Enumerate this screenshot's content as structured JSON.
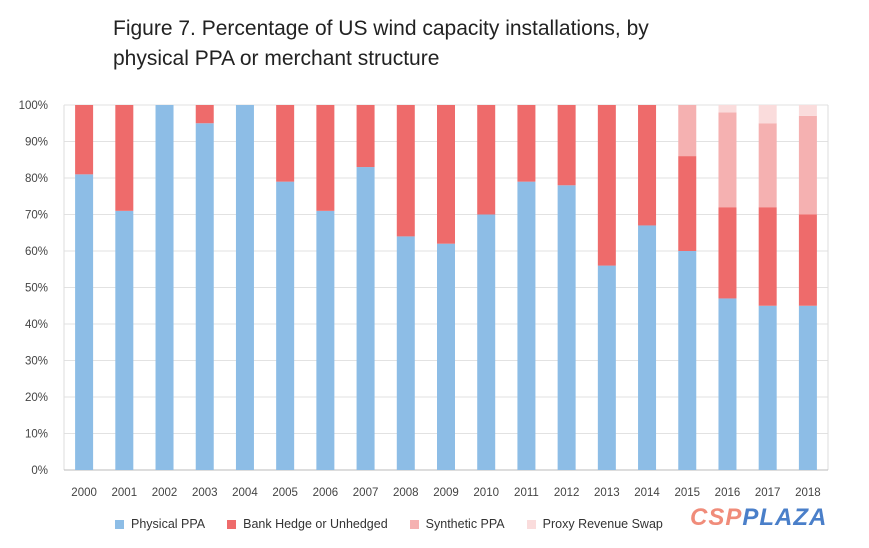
{
  "title_line1": "Figure 7. Percentage of US wind capacity installations, by",
  "title_line2": "physical PPA or merchant structure",
  "chart_data": {
    "type": "bar",
    "stacked": true,
    "title": "Figure 7. Percentage of US wind capacity installations, by physical PPA or merchant structure",
    "xlabel": "",
    "ylabel": "",
    "ylim": [
      0,
      100
    ],
    "yticks": [
      "0%",
      "10%",
      "20%",
      "30%",
      "40%",
      "50%",
      "60%",
      "70%",
      "80%",
      "90%",
      "100%"
    ],
    "grid": true,
    "legend_position": "bottom",
    "categories": [
      "2000",
      "2001",
      "2002",
      "2003",
      "2004",
      "2005",
      "2006",
      "2007",
      "2008",
      "2009",
      "2010",
      "2011",
      "2012",
      "2013",
      "2014",
      "2015",
      "2016",
      "2017",
      "2018"
    ],
    "series": [
      {
        "name": "Physical PPA",
        "color": "#8dbde6",
        "values": [
          81,
          71,
          100,
          95,
          100,
          79,
          71,
          83,
          64,
          62,
          70,
          79,
          78,
          56,
          67,
          60,
          47,
          45,
          45
        ]
      },
      {
        "name": "Bank Hedge or Unhedged",
        "color": "#ee6b6b",
        "values": [
          19,
          29,
          0,
          5,
          0,
          21,
          29,
          17,
          36,
          38,
          30,
          21,
          22,
          44,
          33,
          26,
          25,
          27,
          25
        ]
      },
      {
        "name": "Synthetic PPA",
        "color": "#f5b1b1",
        "values": [
          0,
          0,
          0,
          0,
          0,
          0,
          0,
          0,
          0,
          0,
          0,
          0,
          0,
          0,
          0,
          14,
          26,
          23,
          27
        ]
      },
      {
        "name": "Proxy Revenue Swap",
        "color": "#fadcdc",
        "values": [
          0,
          0,
          0,
          0,
          0,
          0,
          0,
          0,
          0,
          0,
          0,
          0,
          0,
          0,
          0,
          0,
          2,
          5,
          3
        ]
      }
    ]
  },
  "watermark": {
    "part1": "CSP",
    "part2": "PLAZA"
  }
}
